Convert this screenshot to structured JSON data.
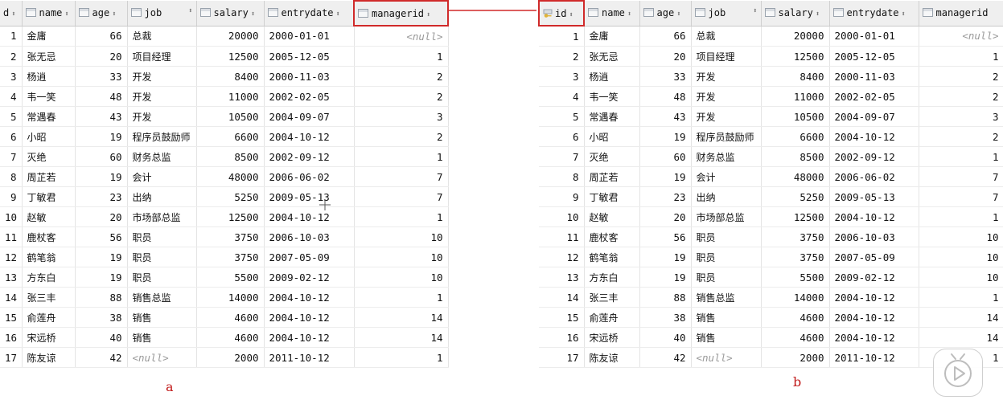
{
  "columns": {
    "id": "id",
    "name": "name",
    "age": "age",
    "job": "job",
    "salary": "salary",
    "entrydate": "entrydate",
    "managerid": "managerid"
  },
  "rows": [
    {
      "id": "1",
      "name": "金庸",
      "age": "66",
      "job": "总裁",
      "salary": "20000",
      "entrydate": "2000-01-01",
      "managerid": "<null>"
    },
    {
      "id": "2",
      "name": "张无忌",
      "age": "20",
      "job": "项目经理",
      "salary": "12500",
      "entrydate": "2005-12-05",
      "managerid": "1"
    },
    {
      "id": "3",
      "name": "杨逍",
      "age": "33",
      "job": "开发",
      "salary": "8400",
      "entrydate": "2000-11-03",
      "managerid": "2"
    },
    {
      "id": "4",
      "name": "韦一笑",
      "age": "48",
      "job": "开发",
      "salary": "11000",
      "entrydate": "2002-02-05",
      "managerid": "2"
    },
    {
      "id": "5",
      "name": "常遇春",
      "age": "43",
      "job": "开发",
      "salary": "10500",
      "entrydate": "2004-09-07",
      "managerid": "3"
    },
    {
      "id": "6",
      "name": "小昭",
      "age": "19",
      "job": "程序员鼓励师",
      "salary": "6600",
      "entrydate": "2004-10-12",
      "managerid": "2"
    },
    {
      "id": "7",
      "name": "灭绝",
      "age": "60",
      "job": "财务总监",
      "salary": "8500",
      "entrydate": "2002-09-12",
      "managerid": "1"
    },
    {
      "id": "8",
      "name": "周芷若",
      "age": "19",
      "job": "会计",
      "salary": "48000",
      "entrydate": "2006-06-02",
      "managerid": "7"
    },
    {
      "id": "9",
      "name": "丁敏君",
      "age": "23",
      "job": "出纳",
      "salary": "5250",
      "entrydate": "2009-05-13",
      "managerid": "7"
    },
    {
      "id": "10",
      "name": "赵敏",
      "age": "20",
      "job": "市场部总监",
      "salary": "12500",
      "entrydate": "2004-10-12",
      "managerid": "1"
    },
    {
      "id": "11",
      "name": "鹿杖客",
      "age": "56",
      "job": "职员",
      "salary": "3750",
      "entrydate": "2006-10-03",
      "managerid": "10"
    },
    {
      "id": "12",
      "name": "鹤笔翁",
      "age": "19",
      "job": "职员",
      "salary": "3750",
      "entrydate": "2007-05-09",
      "managerid": "10"
    },
    {
      "id": "13",
      "name": "方东白",
      "age": "19",
      "job": "职员",
      "salary": "5500",
      "entrydate": "2009-02-12",
      "managerid": "10"
    },
    {
      "id": "14",
      "name": "张三丰",
      "age": "88",
      "job": "销售总监",
      "salary": "14000",
      "entrydate": "2004-10-12",
      "managerid": "1"
    },
    {
      "id": "15",
      "name": "俞莲舟",
      "age": "38",
      "job": "销售",
      "salary": "4600",
      "entrydate": "2004-10-12",
      "managerid": "14"
    },
    {
      "id": "16",
      "name": "宋远桥",
      "age": "40",
      "job": "销售",
      "salary": "4600",
      "entrydate": "2004-10-12",
      "managerid": "14"
    },
    {
      "id": "17",
      "name": "陈友谅",
      "age": "42",
      "job": "<null>",
      "salary": "2000",
      "entrydate": "2011-10-12",
      "managerid": "1"
    }
  ],
  "tables": {
    "a": {
      "caption": "a",
      "first_header": "d",
      "highlighted_column": "managerid"
    },
    "b": {
      "caption": "b",
      "first_header": "id",
      "highlighted_column": "id"
    }
  },
  "colors": {
    "highlight": "#d02a2a",
    "caption": "#c01818",
    "null_text": "#9a9a9a"
  }
}
